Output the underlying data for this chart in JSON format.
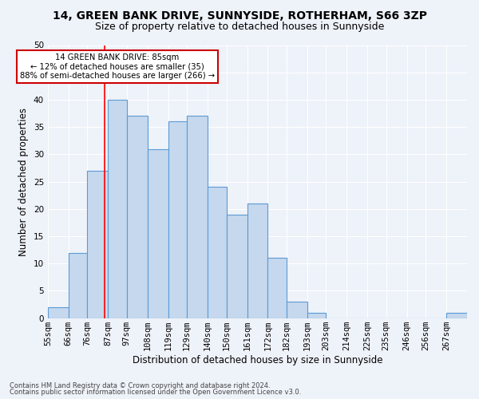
{
  "title1": "14, GREEN BANK DRIVE, SUNNYSIDE, ROTHERHAM, S66 3ZP",
  "title2": "Size of property relative to detached houses in Sunnyside",
  "xlabel": "Distribution of detached houses by size in Sunnyside",
  "ylabel": "Number of detached properties",
  "bin_edges": [
    55,
    66,
    76,
    87,
    97,
    108,
    119,
    129,
    140,
    150,
    161,
    172,
    182,
    193,
    203,
    214,
    225,
    235,
    246,
    256,
    267,
    278
  ],
  "bin_labels": [
    "55sqm",
    "66sqm",
    "76sqm",
    "87sqm",
    "97sqm",
    "108sqm",
    "119sqm",
    "129sqm",
    "140sqm",
    "150sqm",
    "161sqm",
    "172sqm",
    "182sqm",
    "193sqm",
    "203sqm",
    "214sqm",
    "225sqm",
    "235sqm",
    "246sqm",
    "256sqm",
    "267sqm"
  ],
  "bar_heights": [
    2,
    12,
    27,
    40,
    37,
    31,
    36,
    37,
    24,
    19,
    21,
    11,
    3,
    1,
    0,
    0,
    0,
    0,
    0,
    0,
    1
  ],
  "bar_color": "#c5d8ed",
  "bar_edge_color": "#5b9bd5",
  "red_line_x": 85,
  "ylim": [
    0,
    50
  ],
  "yticks": [
    0,
    5,
    10,
    15,
    20,
    25,
    30,
    35,
    40,
    45,
    50
  ],
  "annotation_title": "14 GREEN BANK DRIVE: 85sqm",
  "annotation_line1": "← 12% of detached houses are smaller (35)",
  "annotation_line2": "88% of semi-detached houses are larger (266) →",
  "annotation_box_color": "#ffffff",
  "annotation_box_edge": "#cc0000",
  "footer1": "Contains HM Land Registry data © Crown copyright and database right 2024.",
  "footer2": "Contains public sector information licensed under the Open Government Licence v3.0.",
  "background_color": "#eef2f9",
  "grid_color": "#ffffff",
  "title_fontsize": 10,
  "subtitle_fontsize": 9,
  "axis_label_fontsize": 8.5,
  "tick_fontsize": 7.5,
  "footer_fontsize": 6.0
}
